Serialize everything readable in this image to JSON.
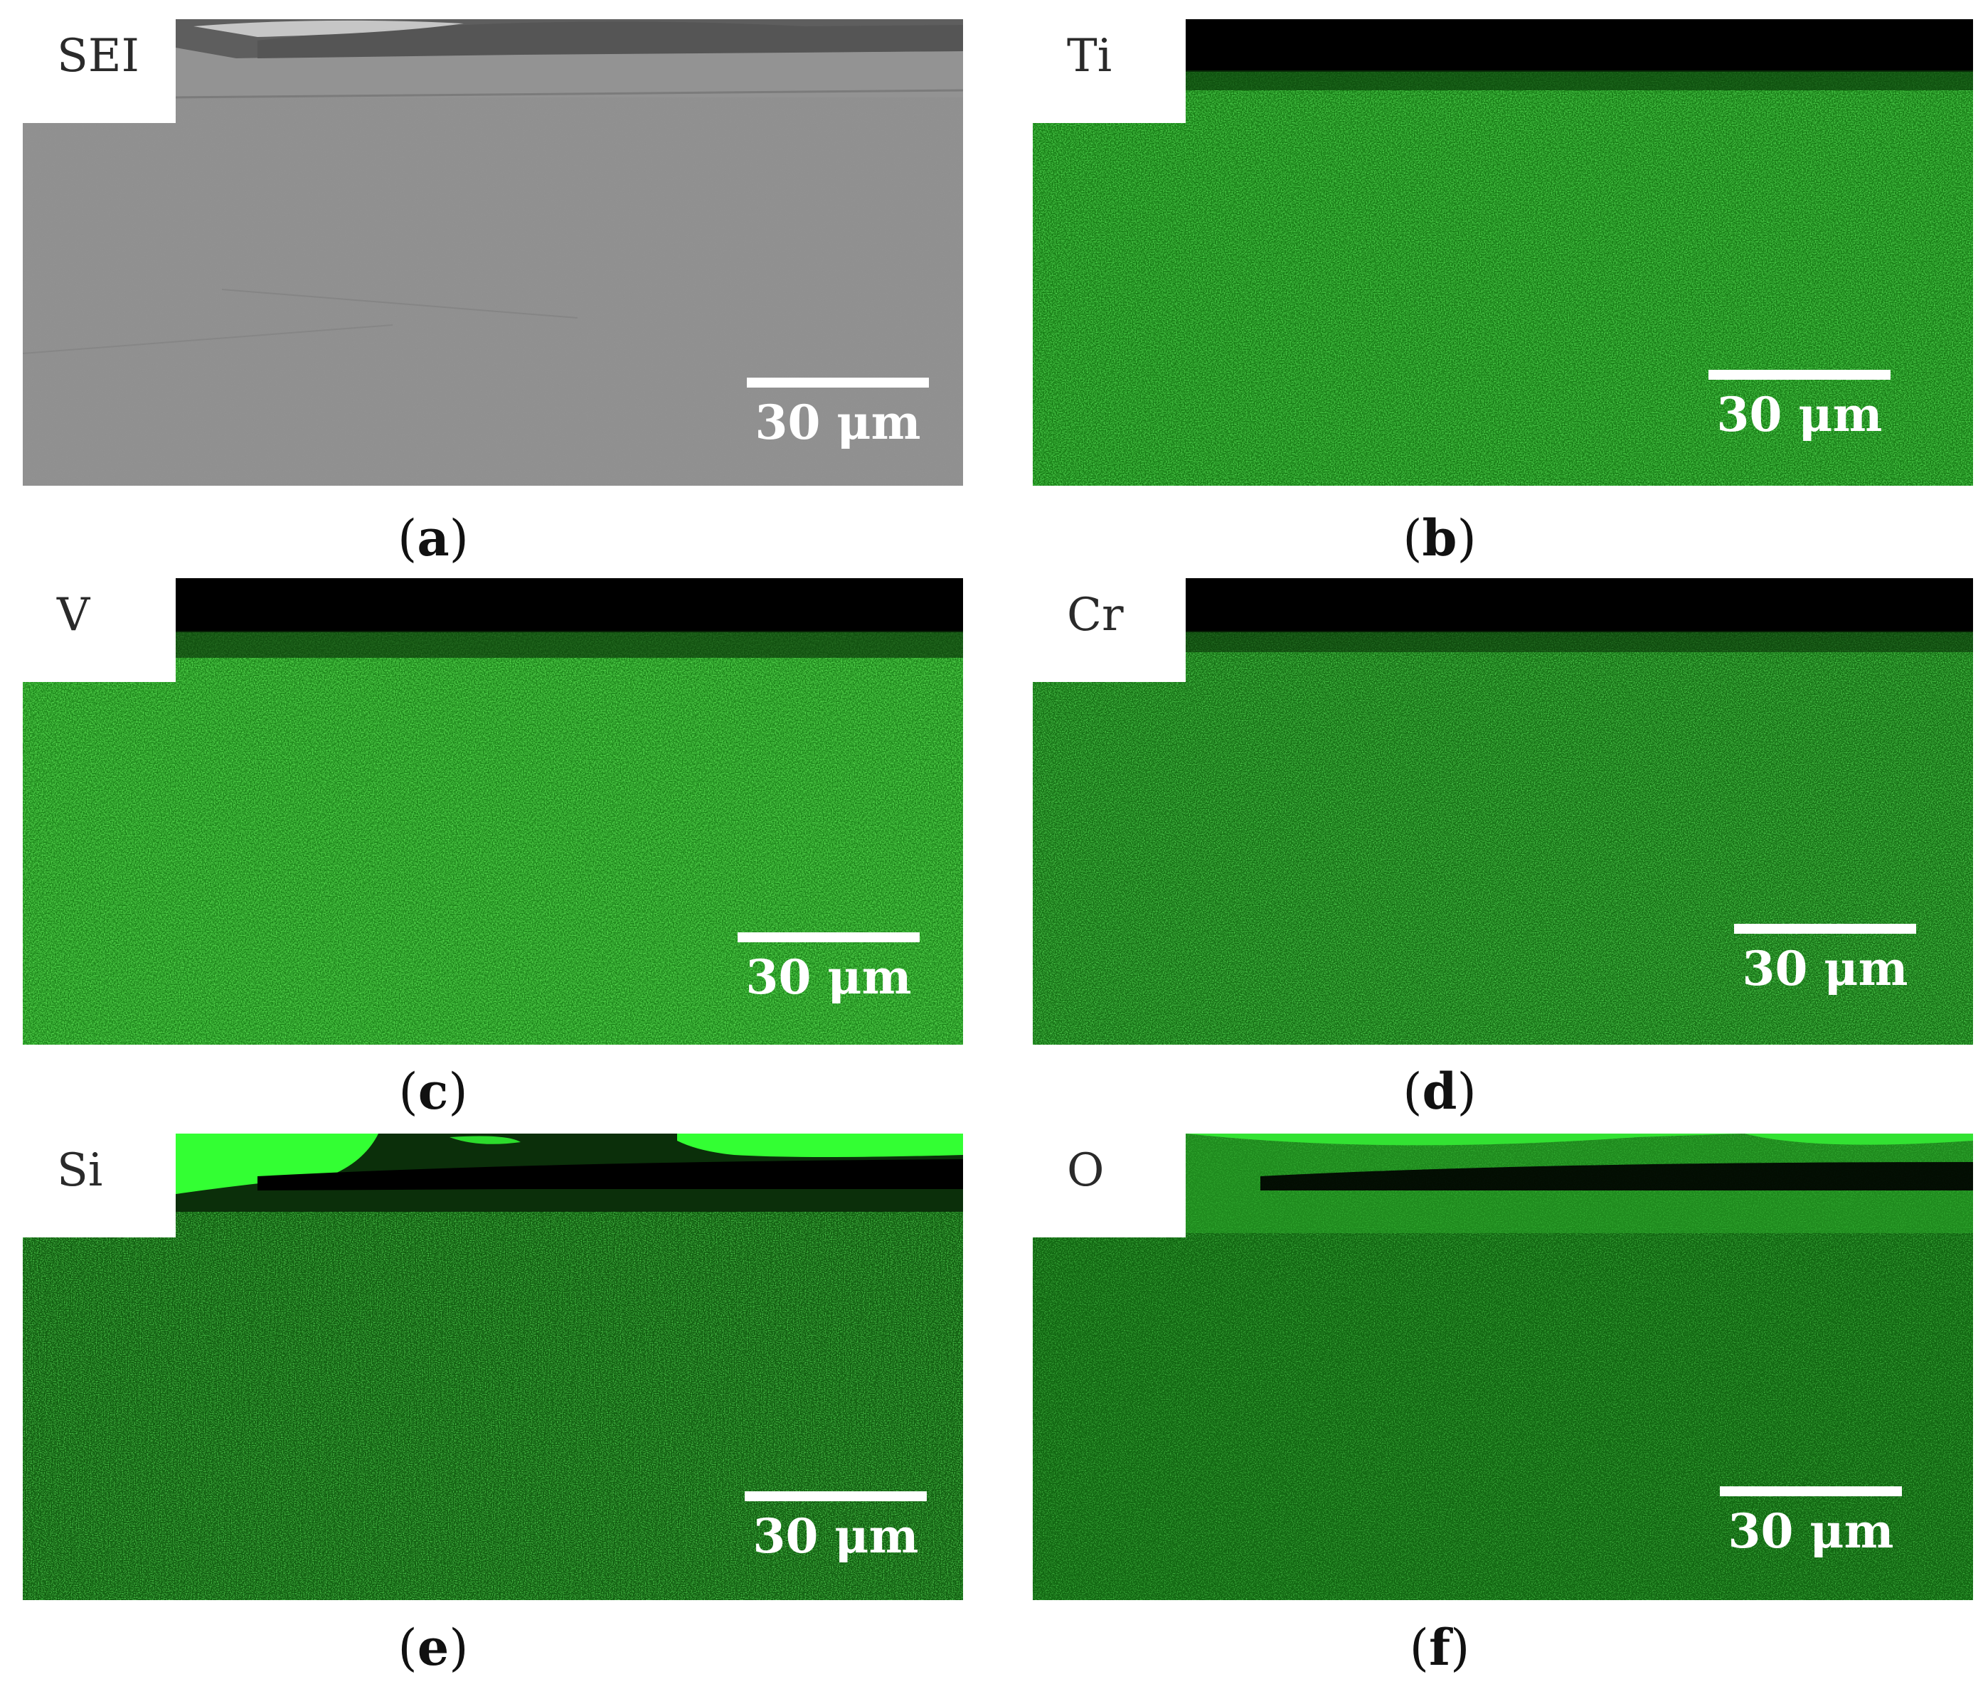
{
  "figure": {
    "scale_bar": "30 μm",
    "panels": [
      {
        "id": "a",
        "caption": "a",
        "label": "SEI",
        "type": "sem"
      },
      {
        "id": "b",
        "caption": "b",
        "label": "Ti",
        "type": "eds"
      },
      {
        "id": "c",
        "caption": "c",
        "label": "V",
        "type": "eds"
      },
      {
        "id": "d",
        "caption": "d",
        "label": "Cr",
        "type": "eds"
      },
      {
        "id": "e",
        "caption": "e",
        "label": "Si",
        "type": "eds-si"
      },
      {
        "id": "f",
        "caption": "f",
        "label": "O",
        "type": "eds-o"
      }
    ],
    "colors": {
      "eds_map": "#22a81e",
      "eds_bright": "#33ff33",
      "sem_gray": "#8f8f8f",
      "background": "#ffffff"
    }
  }
}
